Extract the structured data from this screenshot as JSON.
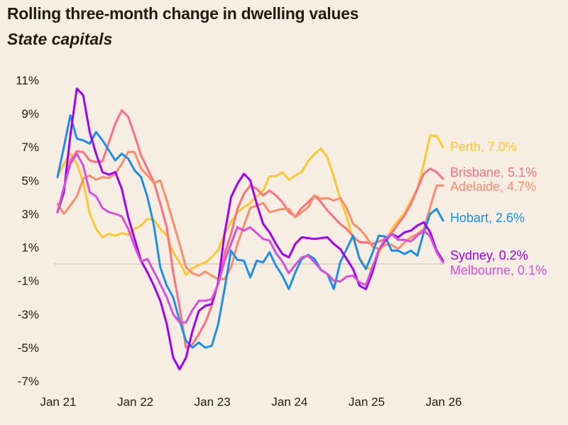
{
  "chart_data": {
    "type": "line",
    "title": "Rolling three-month change in dwelling values",
    "subtitle": "State capitals",
    "xlabel": "",
    "ylabel": "",
    "ylim": [
      -7,
      11
    ],
    "yticks": [
      11,
      9,
      7,
      5,
      3,
      1,
      -1,
      -3,
      -5,
      -7
    ],
    "ytick_labels": [
      "11%",
      "9%",
      "7%",
      "5%",
      "3%",
      "1%",
      "-1%",
      "-3%",
      "-5%",
      "-7%"
    ],
    "xtick_labels": [
      "Jan 21",
      "Jan 22",
      "Jan 23",
      "Jan 24",
      "Jan 25",
      "Jan 26"
    ],
    "xticks": [
      "2021-01",
      "2022-01",
      "2023-01",
      "2024-01",
      "2025-01",
      "2026-01"
    ],
    "zero_line": true,
    "grid": false,
    "legend": "end-of-line labels",
    "x": [
      "2021-01",
      "2021-02",
      "2021-03",
      "2021-04",
      "2021-05",
      "2021-06",
      "2021-07",
      "2021-08",
      "2021-09",
      "2021-10",
      "2021-11",
      "2021-12",
      "2022-01",
      "2022-02",
      "2022-03",
      "2022-04",
      "2022-05",
      "2022-06",
      "2022-07",
      "2022-08",
      "2022-09",
      "2022-10",
      "2022-11",
      "2022-12",
      "2023-01",
      "2023-02",
      "2023-03",
      "2023-04",
      "2023-05",
      "2023-06",
      "2023-07",
      "2023-08",
      "2023-09",
      "2023-10",
      "2023-11",
      "2023-12",
      "2024-01",
      "2024-02",
      "2024-03",
      "2024-04",
      "2024-05",
      "2024-06",
      "2024-07",
      "2024-08",
      "2024-09",
      "2024-10",
      "2024-11",
      "2024-12",
      "2025-01",
      "2025-02",
      "2025-03",
      "2025-04",
      "2025-05",
      "2025-06",
      "2025-07",
      "2025-08",
      "2025-09",
      "2025-10",
      "2025-11",
      "2025-12",
      "2026-01"
    ],
    "series": [
      {
        "name": "Perth",
        "label": "Perth, 7.0%",
        "color": "#ffc72c",
        "values": [
          5.2,
          6.0,
          6.6,
          6.0,
          4.9,
          3.05,
          2.1,
          1.6,
          1.8,
          1.7,
          1.85,
          1.75,
          2.1,
          2.3,
          2.7,
          2.65,
          2.1,
          1.7,
          0.7,
          0.1,
          -0.65,
          -0.25,
          -0.05,
          0.1,
          0.4,
          0.85,
          1.8,
          2.5,
          3.1,
          3.4,
          3.65,
          4.05,
          4.4,
          5.25,
          5.25,
          5.5,
          5.05,
          5.3,
          5.5,
          6.15,
          6.6,
          6.9,
          6.4,
          5.2,
          3.9,
          2.8,
          1.5,
          0.4,
          -0.25,
          -0.25,
          0.65,
          1.3,
          2.1,
          2.6,
          3.05,
          3.8,
          4.5,
          6.0,
          7.7,
          7.65,
          7.0
        ]
      },
      {
        "name": "Brisbane",
        "label": "Brisbane, 5.1%",
        "color": "#ff6f7d",
        "values": [
          3.1,
          4.5,
          6.2,
          6.75,
          6.7,
          6.2,
          6.1,
          6.15,
          7.3,
          8.4,
          9.2,
          8.8,
          7.7,
          6.5,
          5.7,
          4.9,
          3.6,
          2.2,
          -0.5,
          -2.6,
          -5.0,
          -4.8,
          -4.2,
          -3.5,
          -2.5,
          -1.1,
          0.6,
          1.8,
          3.3,
          4.2,
          4.7,
          4.5,
          4.1,
          4.4,
          4.1,
          3.7,
          3.1,
          2.85,
          3.35,
          3.7,
          4.1,
          3.7,
          3.2,
          2.8,
          2.4,
          2.1,
          1.65,
          1.3,
          1.3,
          1.2,
          1.35,
          1.5,
          1.85,
          2.4,
          2.9,
          3.6,
          4.5,
          5.4,
          5.7,
          5.5,
          5.1
        ]
      },
      {
        "name": "Adelaide",
        "label": "Adelaide, 4.7%",
        "color": "#ff8c69",
        "values": [
          3.6,
          3.0,
          3.5,
          4.05,
          5.1,
          5.3,
          5.05,
          5.2,
          5.15,
          5.4,
          6.0,
          6.7,
          6.7,
          5.7,
          5.3,
          4.85,
          5.0,
          3.8,
          2.5,
          1.2,
          -0.2,
          -0.55,
          -0.7,
          -0.45,
          -0.7,
          -0.9,
          -0.9,
          -0.2,
          1.2,
          2.3,
          3.35,
          3.5,
          3.65,
          3.1,
          3.2,
          3.3,
          3.3,
          2.8,
          3.1,
          3.4,
          4.1,
          3.9,
          3.95,
          3.8,
          3.95,
          3.35,
          2.4,
          2.1,
          1.65,
          1.05,
          0.9,
          1.15,
          1.15,
          0.9,
          1.3,
          1.6,
          1.8,
          2.1,
          3.4,
          4.7,
          4.7
        ]
      },
      {
        "name": "Hobart",
        "label": "Hobart, 2.6%",
        "color": "#1c8fe8",
        "values": [
          5.2,
          7.0,
          8.9,
          7.5,
          7.4,
          7.2,
          7.9,
          7.4,
          6.8,
          6.2,
          6.6,
          6.3,
          5.6,
          5.2,
          4.0,
          2.3,
          -0.2,
          -1.3,
          -2.0,
          -3.4,
          -4.6,
          -5.0,
          -4.7,
          -5.0,
          -4.9,
          -3.6,
          -1.5,
          0.8,
          0.25,
          0.2,
          -0.8,
          0.2,
          0.1,
          0.7,
          -0.1,
          -0.7,
          -1.5,
          -0.5,
          0.3,
          0.55,
          0.3,
          -0.35,
          -0.6,
          -1.5,
          0.1,
          0.9,
          1.7,
          0.3,
          -0.3,
          0.65,
          1.7,
          1.65,
          0.8,
          0.8,
          0.6,
          0.8,
          0.5,
          1.9,
          3.0,
          3.3,
          2.6
        ]
      },
      {
        "name": "Sydney",
        "label": "Sydney, 0.2%",
        "color": "#a000f5",
        "values": [
          3.1,
          4.3,
          7.7,
          10.5,
          10.1,
          7.9,
          6.6,
          5.5,
          5.35,
          5.5,
          4.5,
          2.8,
          1.5,
          0.2,
          -0.5,
          -1.3,
          -2.2,
          -3.6,
          -5.6,
          -6.3,
          -5.6,
          -4.0,
          -2.8,
          -2.5,
          -2.4,
          -1.1,
          1.8,
          4.0,
          4.8,
          5.4,
          5.0,
          3.6,
          2.4,
          1.9,
          1.2,
          0.6,
          0.4,
          1.2,
          1.6,
          1.55,
          1.5,
          1.55,
          1.6,
          1.2,
          0.9,
          0.3,
          -0.3,
          -1.3,
          -1.5,
          -0.5,
          0.85,
          1.4,
          1.8,
          1.6,
          1.9,
          2.0,
          2.3,
          2.5,
          1.9,
          0.8,
          0.2
        ]
      },
      {
        "name": "Melbourne",
        "label": "Melbourne, 0.1%",
        "color": "#d94fd9",
        "values": [
          3.1,
          4.6,
          6.0,
          6.6,
          5.9,
          4.3,
          4.05,
          3.35,
          3.1,
          3.0,
          2.85,
          2.1,
          1.05,
          0.15,
          0.3,
          -0.45,
          -1.2,
          -2.0,
          -3.0,
          -3.5,
          -3.5,
          -2.75,
          -2.2,
          -2.2,
          -2.1,
          -1.2,
          0.2,
          1.2,
          2.2,
          2.0,
          2.2,
          1.85,
          1.5,
          1.4,
          0.65,
          0.15,
          -0.55,
          -0.05,
          0.4,
          0.5,
          0.1,
          -0.35,
          -0.6,
          -1.0,
          -1.05,
          -0.75,
          -0.7,
          -1.1,
          -1.25,
          -0.2,
          0.85,
          1.5,
          1.8,
          1.45,
          1.45,
          1.35,
          1.7,
          2.0,
          1.65,
          0.7,
          0.1
        ]
      }
    ]
  },
  "colors": {
    "background": "#f6eee2",
    "zero_line": "#d3cbc0",
    "text": "#231c14"
  }
}
